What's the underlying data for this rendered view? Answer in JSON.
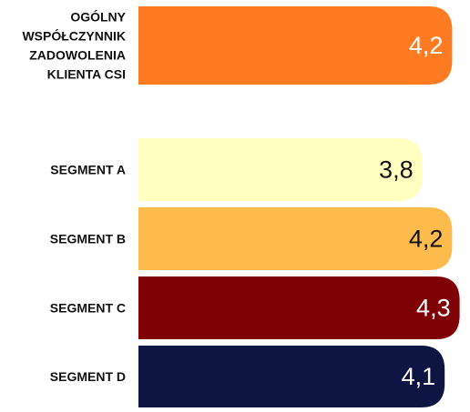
{
  "chart_data": {
    "type": "bar",
    "orientation": "horizontal",
    "categories": [
      "OGÓLNY\nWSPÓŁCZYNNIK\nZADOWOLENIA\nKLIENTA CSI",
      "SEGMENT A",
      "SEGMENT B",
      "SEGMENT C",
      "SEGMENT D"
    ],
    "values": [
      4.2,
      3.8,
      4.2,
      4.3,
      4.1
    ],
    "value_labels": [
      "4,2",
      "3,8",
      "4,2",
      "4,3",
      "4,1"
    ],
    "colors": [
      "#ff7b22",
      "#ffffc0",
      "#fdbb4c",
      "#7f0005",
      "#0e1542"
    ],
    "value_label_colors": [
      "#ffffff",
      "#111111",
      "#111111",
      "#ffffff",
      "#ffffff"
    ],
    "title": "",
    "xlabel": "",
    "ylabel": "",
    "grid": false,
    "legend": "none"
  }
}
